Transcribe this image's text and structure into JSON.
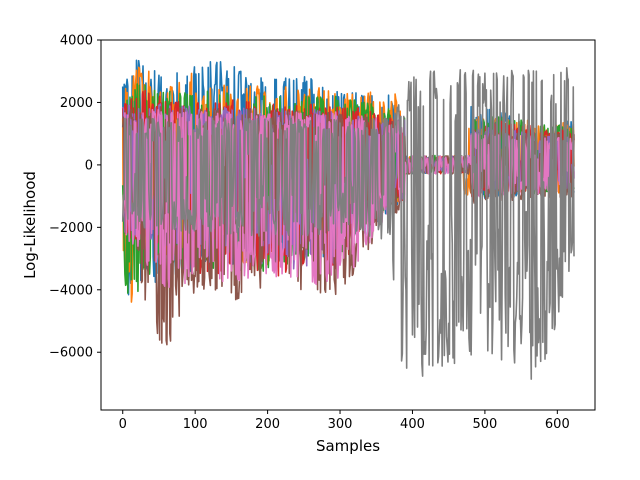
{
  "chart_data": {
    "type": "line",
    "title": "",
    "xlabel": "Samples",
    "ylabel": "Log-Likelihood",
    "xlim": [
      -30,
      652
    ],
    "ylim": [
      -7850,
      4000
    ],
    "x_ticks": [
      0,
      100,
      200,
      300,
      400,
      500,
      600
    ],
    "y_ticks": [
      -6000,
      -4000,
      -2000,
      0,
      2000,
      4000
    ],
    "x_tick_labels": [
      "0",
      "100",
      "200",
      "300",
      "400",
      "500",
      "600"
    ],
    "y_tick_labels": [
      "−6000",
      "−4000",
      "−2000",
      "0",
      "2000",
      "4000"
    ],
    "grid": false,
    "legend": "none",
    "n_samples": 624,
    "series": [
      {
        "color": "#1f77b4",
        "peaks": [
          [
            0,
            2700
          ],
          [
            20,
            3400
          ],
          [
            60,
            2800
          ],
          [
            90,
            3200
          ],
          [
            135,
            3400
          ],
          [
            200,
            2800
          ],
          [
            260,
            2900
          ],
          [
            300,
            2400
          ],
          [
            350,
            2300
          ],
          [
            470,
            2000
          ],
          [
            520,
            1700
          ],
          [
            600,
            1500
          ]
        ],
        "troughs": [
          [
            0,
            -3500
          ],
          [
            5,
            -5100
          ],
          [
            15,
            -3900
          ],
          [
            60,
            -3700
          ],
          [
            100,
            -3400
          ],
          [
            200,
            -3000
          ],
          [
            300,
            -3000
          ],
          [
            370,
            -1500
          ],
          [
            470,
            -1200
          ],
          [
            600,
            -1000
          ]
        ],
        "flat": [
          [
            380,
            480
          ],
          [
            550,
            610
          ]
        ]
      },
      {
        "color": "#ff7f0e",
        "peaks": [
          [
            0,
            2600
          ],
          [
            20,
            3200
          ],
          [
            60,
            2700
          ],
          [
            100,
            3000
          ],
          [
            150,
            2500
          ],
          [
            250,
            2600
          ],
          [
            300,
            2300
          ],
          [
            370,
            2500
          ],
          [
            420,
            2000
          ],
          [
            500,
            1500
          ],
          [
            600,
            1400
          ]
        ],
        "troughs": [
          [
            0,
            -3000
          ],
          [
            5,
            -4600
          ],
          [
            60,
            -3000
          ],
          [
            100,
            -3200
          ],
          [
            200,
            -3200
          ],
          [
            300,
            -2800
          ],
          [
            370,
            -1300
          ],
          [
            500,
            -900
          ],
          [
            600,
            -900
          ]
        ],
        "flat": [
          [
            385,
            470
          ]
        ]
      },
      {
        "color": "#2ca02c",
        "peaks": [
          [
            0,
            2400
          ],
          [
            20,
            2800
          ],
          [
            60,
            2400
          ],
          [
            100,
            2500
          ],
          [
            150,
            2300
          ],
          [
            250,
            2200
          ],
          [
            300,
            2200
          ],
          [
            370,
            1800
          ],
          [
            500,
            1600
          ],
          [
            600,
            1300
          ]
        ],
        "troughs": [
          [
            0,
            -2800
          ],
          [
            5,
            -4500
          ],
          [
            60,
            -3000
          ],
          [
            100,
            -3500
          ],
          [
            200,
            -3400
          ],
          [
            300,
            -2900
          ],
          [
            370,
            -1300
          ],
          [
            500,
            -1000
          ],
          [
            600,
            -900
          ]
        ],
        "flat": [
          [
            390,
            480
          ]
        ]
      },
      {
        "color": "#d62728",
        "peaks": [
          [
            0,
            2100
          ],
          [
            30,
            2400
          ],
          [
            60,
            2200
          ],
          [
            100,
            2000
          ],
          [
            150,
            2100
          ],
          [
            250,
            2000
          ],
          [
            300,
            1900
          ],
          [
            370,
            1700
          ],
          [
            500,
            1500
          ],
          [
            600,
            1200
          ]
        ],
        "troughs": [
          [
            0,
            -2500
          ],
          [
            60,
            -2900
          ],
          [
            100,
            -3500
          ],
          [
            200,
            -3600
          ],
          [
            300,
            -3300
          ],
          [
            370,
            -1200
          ],
          [
            500,
            -1000
          ],
          [
            600,
            -900
          ]
        ],
        "flat": [
          [
            390,
            480
          ]
        ]
      },
      {
        "color": "#9467bd",
        "peaks": [
          [
            0,
            1900
          ],
          [
            60,
            2000
          ],
          [
            100,
            1900
          ],
          [
            200,
            1800
          ],
          [
            300,
            1800
          ],
          [
            370,
            1500
          ],
          [
            500,
            1200
          ],
          [
            600,
            1000
          ]
        ],
        "troughs": [
          [
            0,
            -2300
          ],
          [
            60,
            -2700
          ],
          [
            100,
            -3300
          ],
          [
            200,
            -3400
          ],
          [
            300,
            -3200
          ],
          [
            370,
            -1200
          ],
          [
            500,
            -900
          ],
          [
            600,
            -800
          ]
        ],
        "flat": [
          [
            390,
            480
          ]
        ]
      },
      {
        "color": "#8c564b",
        "peaks": [
          [
            0,
            1800
          ],
          [
            60,
            1900
          ],
          [
            100,
            1800
          ],
          [
            200,
            1800
          ],
          [
            300,
            1700
          ],
          [
            370,
            1500
          ],
          [
            500,
            1100
          ],
          [
            600,
            1000
          ]
        ],
        "troughs": [
          [
            0,
            -2600
          ],
          [
            60,
            -6200
          ],
          [
            100,
            -4000
          ],
          [
            150,
            -4400
          ],
          [
            200,
            -3900
          ],
          [
            300,
            -4200
          ],
          [
            370,
            -1600
          ],
          [
            500,
            -1200
          ],
          [
            600,
            -1100
          ]
        ],
        "flat": [
          [
            390,
            480
          ]
        ]
      },
      {
        "color": "#e377c2",
        "peaks": [
          [
            0,
            1700
          ],
          [
            60,
            1800
          ],
          [
            100,
            1700
          ],
          [
            200,
            1700
          ],
          [
            300,
            1700
          ],
          [
            370,
            1500
          ],
          [
            500,
            1000
          ],
          [
            600,
            900
          ]
        ],
        "troughs": [
          [
            0,
            -2200
          ],
          [
            60,
            -4000
          ],
          [
            100,
            -3800
          ],
          [
            200,
            -3700
          ],
          [
            300,
            -4000
          ],
          [
            370,
            -1500
          ],
          [
            500,
            -1000
          ],
          [
            600,
            -900
          ]
        ],
        "flat": [
          [
            390,
            480
          ]
        ]
      },
      {
        "color": "#7f7f7f",
        "peaks": [
          [
            0,
            1500
          ],
          [
            100,
            1500
          ],
          [
            200,
            1500
          ],
          [
            300,
            1500
          ],
          [
            370,
            1500
          ],
          [
            400,
            2900
          ],
          [
            450,
            3100
          ],
          [
            500,
            3000
          ],
          [
            550,
            3100
          ],
          [
            600,
            3100
          ],
          [
            622,
            3200
          ]
        ],
        "troughs": [
          [
            0,
            -2000
          ],
          [
            100,
            -2200
          ],
          [
            200,
            -2300
          ],
          [
            300,
            -2300
          ],
          [
            370,
            -2500
          ],
          [
            385,
            -7100
          ],
          [
            430,
            -6600
          ],
          [
            500,
            -6000
          ],
          [
            540,
            -6500
          ],
          [
            570,
            -7200
          ],
          [
            600,
            -5000
          ],
          [
            622,
            -3000
          ]
        ],
        "flat": []
      }
    ]
  }
}
